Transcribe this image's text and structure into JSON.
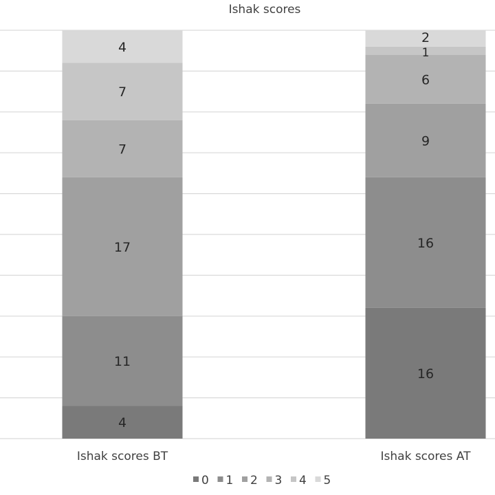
{
  "chart_data": {
    "type": "bar",
    "stacked": true,
    "title": "Ishak scores",
    "categories": [
      "Ishak scores BT",
      "Ishak scores AT"
    ],
    "series": [
      {
        "name": "0",
        "values": [
          4,
          16
        ],
        "color": "#7a7a7a"
      },
      {
        "name": "1",
        "values": [
          11,
          16
        ],
        "color": "#8d8d8d"
      },
      {
        "name": "2",
        "values": [
          17,
          9
        ],
        "color": "#a0a0a0"
      },
      {
        "name": "3",
        "values": [
          7,
          6
        ],
        "color": "#b3b3b3"
      },
      {
        "name": "4",
        "values": [
          7,
          1
        ],
        "color": "#c6c6c6"
      },
      {
        "name": "5",
        "values": [
          4,
          2
        ],
        "color": "#d9d9d9"
      }
    ],
    "ylim": [
      0,
      50
    ],
    "grid": true,
    "data_labels": true,
    "legend_position": "bottom"
  }
}
